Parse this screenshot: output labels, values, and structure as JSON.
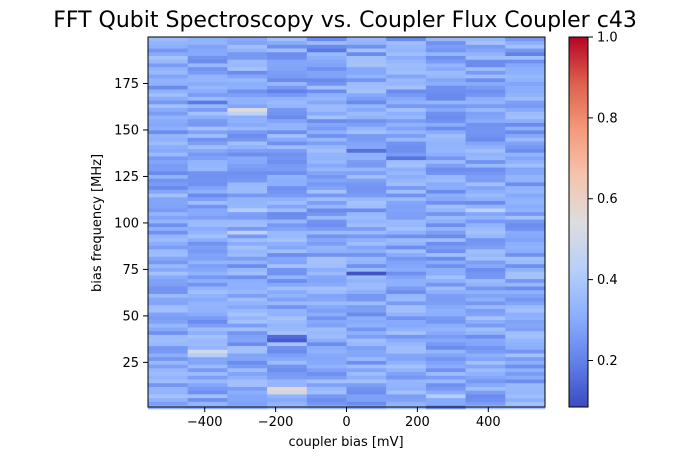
{
  "chart_data": {
    "type": "heatmap",
    "title": "FFT Qubit Spectroscopy vs. Coupler Flux  Coupler c43",
    "xlabel": "coupler bias [mV]",
    "ylabel": "bias frequency [MHz]",
    "xlim": [
      -560,
      560
    ],
    "ylim": [
      1,
      200
    ],
    "xticks": [
      -400,
      -200,
      0,
      200,
      400
    ],
    "xtick_labels": [
      "−400",
      "−200",
      "0",
      "200",
      "400"
    ],
    "yticks": [
      25,
      50,
      75,
      100,
      125,
      150,
      175
    ],
    "ytick_labels": [
      "25",
      "50",
      "75",
      "100",
      "125",
      "150",
      "175"
    ],
    "x_bin_centers": [
      -504,
      -392,
      -280,
      -168,
      -56,
      56,
      168,
      280,
      392,
      504
    ],
    "x_bin_width": 112,
    "y_bin_height": 2,
    "colormap": "coolwarm",
    "color_range": [
      0.085,
      1.0
    ],
    "colorbar_ticks": [
      0.2,
      0.4,
      0.6,
      0.8,
      1.0
    ],
    "colorbar_tick_labels": [
      "0.2",
      "0.4",
      "0.6",
      "0.8",
      "1.0"
    ],
    "base_value": 0.3,
    "highlights": [
      {
        "x": -168,
        "y": 11,
        "value": 0.58
      },
      {
        "x": -168,
        "y": 9,
        "value": 0.5
      },
      {
        "x": -168,
        "y": 37,
        "value": 0.12
      },
      {
        "x": -168,
        "y": 39,
        "value": 0.15
      },
      {
        "x": -392,
        "y": 31,
        "value": 0.5
      },
      {
        "x": -392,
        "y": 29,
        "value": 0.42
      },
      {
        "x": -280,
        "y": 161,
        "value": 0.55
      },
      {
        "x": -280,
        "y": 159,
        "value": 0.45
      },
      {
        "x": -280,
        "y": 95,
        "value": 0.45
      },
      {
        "x": -280,
        "y": 107,
        "value": 0.42
      },
      {
        "x": 56,
        "y": 73,
        "value": 0.1
      },
      {
        "x": 56,
        "y": 139,
        "value": 0.16
      },
      {
        "x": 168,
        "y": 135,
        "value": 0.17
      },
      {
        "x": -168,
        "y": 171,
        "value": 0.2
      },
      {
        "x": -392,
        "y": 165,
        "value": 0.18
      },
      {
        "x": 504,
        "y": 191,
        "value": 0.2
      },
      {
        "x": -56,
        "y": 193,
        "value": 0.18
      },
      {
        "x": 392,
        "y": 107,
        "value": 0.44
      },
      {
        "x": 280,
        "y": 7,
        "value": 0.42
      }
    ]
  }
}
